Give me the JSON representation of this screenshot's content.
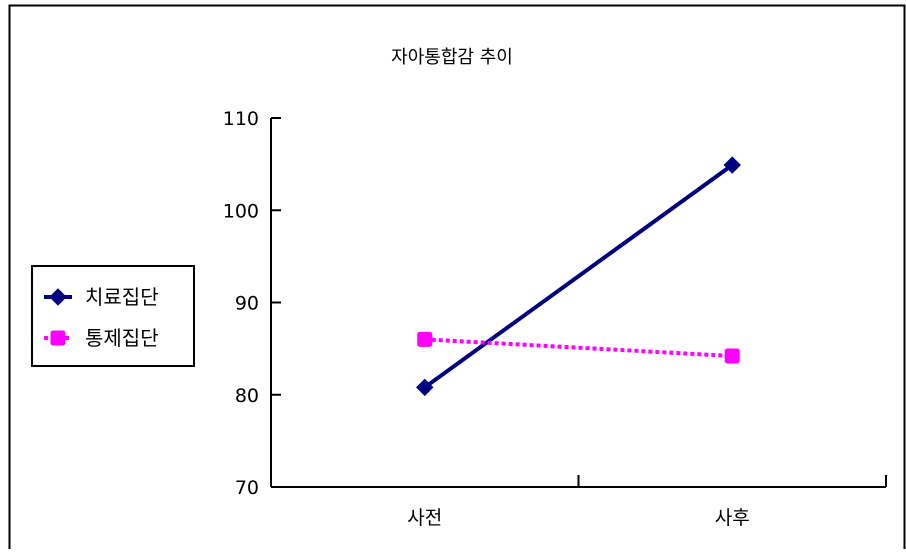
{
  "chart_data": {
    "type": "line",
    "title": "자아통합감 추이",
    "xlabel": "",
    "ylabel": "",
    "categories": [
      "사전",
      "사후"
    ],
    "ylim": [
      70,
      110
    ],
    "yticks": [
      70,
      80,
      90,
      100,
      110
    ],
    "grid": false,
    "legend_position": "left",
    "series": [
      {
        "name": "치료집단",
        "values": [
          80.8,
          104.9
        ],
        "color": "#000080",
        "line_style": "solid",
        "marker": "diamond"
      },
      {
        "name": "통제집단",
        "values": [
          86.0,
          84.2
        ],
        "color": "#FF00FF",
        "line_style": "dotted",
        "marker": "square"
      }
    ]
  }
}
